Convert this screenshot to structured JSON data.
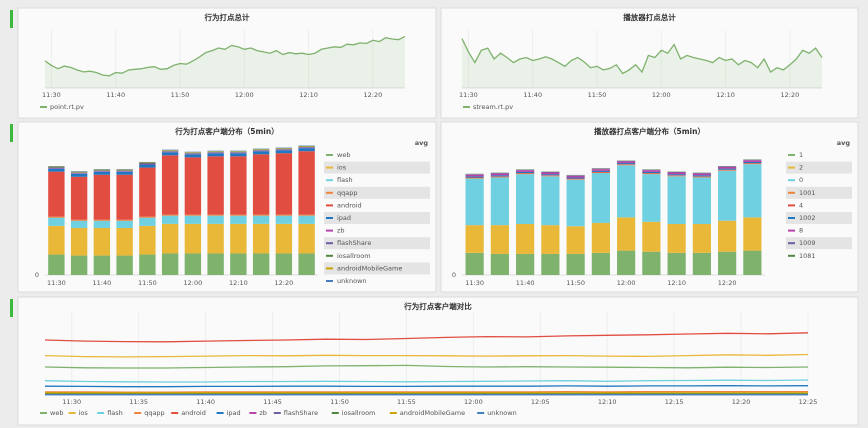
{
  "chart_data": [
    {
      "type": "line",
      "title": "行为打点总计",
      "fill": true,
      "x": [
        "11:29",
        "11:30",
        "11:31",
        "11:32",
        "11:33",
        "11:34",
        "11:35",
        "11:36",
        "11:37",
        "11:38",
        "11:39",
        "11:40",
        "11:41",
        "11:42",
        "11:43",
        "11:44",
        "11:45",
        "11:46",
        "11:47",
        "11:48",
        "11:49",
        "11:50",
        "11:51",
        "11:52",
        "11:53",
        "11:54",
        "11:55",
        "11:56",
        "11:57",
        "11:58",
        "11:59",
        "12:00",
        "12:01",
        "12:02",
        "12:03",
        "12:04",
        "12:05",
        "12:06",
        "12:07",
        "12:08",
        "12:09",
        "12:10",
        "12:11",
        "12:12",
        "12:13",
        "12:14",
        "12:15",
        "12:16",
        "12:17",
        "12:18",
        "12:19",
        "12:20",
        "12:21",
        "12:22",
        "12:23",
        "12:24",
        "12:25"
      ],
      "xlim": [
        "11:29",
        "12:25"
      ],
      "xticks": [
        "11:30",
        "11:40",
        "11:50",
        "12:00",
        "12:10",
        "12:20"
      ],
      "ylim": [
        20,
        110
      ],
      "series": [
        {
          "name": "point.rt.pv",
          "color": "#7eb26d",
          "values": [
            62,
            55,
            50,
            54,
            52,
            48,
            45,
            46,
            44,
            40,
            39,
            44,
            43,
            48,
            49,
            50,
            52,
            53,
            49,
            50,
            55,
            58,
            57,
            62,
            68,
            75,
            78,
            82,
            80,
            86,
            84,
            80,
            82,
            78,
            76,
            74,
            78,
            72,
            75,
            73,
            74,
            72,
            74,
            80,
            82,
            84,
            83,
            88,
            87,
            90,
            89,
            94,
            92,
            98,
            96,
            95,
            100
          ]
        }
      ]
    },
    {
      "type": "line",
      "title": "播放器打点总计",
      "fill": true,
      "x": [
        "11:29",
        "11:30",
        "11:31",
        "11:32",
        "11:33",
        "11:34",
        "11:35",
        "11:36",
        "11:37",
        "11:38",
        "11:39",
        "11:40",
        "11:41",
        "11:42",
        "11:43",
        "11:44",
        "11:45",
        "11:46",
        "11:47",
        "11:48",
        "11:49",
        "11:50",
        "11:51",
        "11:52",
        "11:53",
        "11:54",
        "11:55",
        "11:56",
        "11:57",
        "11:58",
        "11:59",
        "12:00",
        "12:01",
        "12:02",
        "12:03",
        "12:04",
        "12:05",
        "12:06",
        "12:07",
        "12:08",
        "12:09",
        "12:10",
        "12:11",
        "12:12",
        "12:13",
        "12:14",
        "12:15",
        "12:16",
        "12:17",
        "12:18",
        "12:19",
        "12:20",
        "12:21",
        "12:22",
        "12:23",
        "12:24",
        "12:25"
      ],
      "xlim": [
        "11:29",
        "12:25"
      ],
      "xticks": [
        "11:30",
        "11:40",
        "11:50",
        "12:00",
        "12:10",
        "12:20"
      ],
      "ylim": [
        20,
        100
      ],
      "series": [
        {
          "name": "stream.rt.pv",
          "color": "#7eb26d",
          "values": [
            88,
            70,
            55,
            72,
            75,
            60,
            68,
            62,
            55,
            60,
            62,
            58,
            60,
            63,
            60,
            55,
            50,
            58,
            62,
            56,
            48,
            50,
            45,
            47,
            52,
            40,
            45,
            52,
            42,
            65,
            62,
            72,
            68,
            80,
            60,
            65,
            62,
            60,
            58,
            55,
            62,
            58,
            60,
            52,
            58,
            55,
            48,
            60,
            42,
            48,
            45,
            52,
            60,
            72,
            68,
            75,
            62
          ]
        }
      ]
    },
    {
      "type": "bar",
      "title": "行为打点客户端分布（5min）",
      "legend_header": "avg",
      "categories": [
        "11:30",
        null,
        "11:40",
        null,
        "11:50",
        null,
        "12:00",
        null,
        "12:10",
        null,
        "12:20",
        null
      ],
      "ylim": [
        0,
        130
      ],
      "yticks": [
        0
      ],
      "series": [
        {
          "name": "web",
          "color": "#7eb26d",
          "values": [
            20,
            19,
            19,
            19,
            20,
            21,
            21,
            21,
            21,
            21,
            21,
            21
          ]
        },
        {
          "name": "ios",
          "color": "#eab839",
          "values": [
            28,
            27,
            27,
            27,
            28,
            29,
            29,
            29,
            29,
            29,
            29,
            29
          ]
        },
        {
          "name": "flash",
          "color": "#6ed0e0",
          "values": [
            8,
            7,
            7,
            7,
            8,
            8,
            8,
            8,
            8,
            8,
            8,
            8
          ]
        },
        {
          "name": "qqapp",
          "color": "#ef843c",
          "values": [
            1,
            1,
            1,
            1,
            1,
            1,
            1,
            1,
            1,
            1,
            1,
            1
          ]
        },
        {
          "name": "android",
          "color": "#e24d42",
          "values": [
            44,
            42,
            44,
            44,
            48,
            58,
            56,
            57,
            57,
            59,
            60,
            62
          ]
        },
        {
          "name": "ipad",
          "color": "#1f78c1",
          "values": [
            3,
            3,
            3,
            3,
            3,
            3,
            3,
            3,
            3,
            3,
            3,
            3
          ]
        },
        {
          "name": "zb",
          "color": "#ba43a9",
          "values": [
            0.5,
            0.5,
            0.5,
            0.5,
            0.5,
            0.5,
            0.5,
            0.5,
            0.5,
            0.5,
            0.5,
            0.5
          ]
        },
        {
          "name": "flashShare",
          "color": "#705da0",
          "values": [
            0.5,
            0.5,
            0.5,
            0.5,
            0.5,
            0.5,
            0.5,
            0.5,
            0.5,
            0.5,
            0.5,
            0.5
          ]
        },
        {
          "name": "iosallroom",
          "color": "#508642",
          "values": [
            0.5,
            0.5,
            0.5,
            0.5,
            0.5,
            0.5,
            0.5,
            0.5,
            0.5,
            0.5,
            0.5,
            0.5
          ]
        },
        {
          "name": "androidMobileGame",
          "color": "#cca300",
          "values": [
            0.5,
            0.5,
            0.5,
            0.5,
            0.5,
            0.5,
            0.5,
            0.5,
            0.5,
            0.5,
            0.5,
            0.5
          ]
        },
        {
          "name": "unknown",
          "color": "#447ebc",
          "values": [
            0.5,
            0.5,
            0.5,
            0.5,
            0.5,
            0.5,
            0.5,
            0.5,
            0.5,
            0.5,
            0.5,
            0.5
          ]
        }
      ]
    },
    {
      "type": "bar",
      "title": "播放器打点客户端分布（5min）",
      "legend_header": "avg",
      "categories": [
        "11:30",
        null,
        "11:40",
        null,
        "11:50",
        null,
        "12:00",
        null,
        "12:10",
        null,
        "12:20",
        null
      ],
      "ylim": [
        0,
        120
      ],
      "yticks": [
        0
      ],
      "series": [
        {
          "name": "1",
          "color": "#7eb26d",
          "values": [
            20,
            19,
            19,
            19,
            19,
            20,
            22,
            21,
            20,
            20,
            21,
            22
          ]
        },
        {
          "name": "2",
          "color": "#eab839",
          "values": [
            25,
            26,
            27,
            26,
            25,
            27,
            30,
            27,
            26,
            26,
            28,
            30
          ]
        },
        {
          "name": "0",
          "color": "#6ed0e0",
          "values": [
            42,
            43,
            45,
            44,
            42,
            45,
            47,
            43,
            43,
            42,
            45,
            48
          ]
        },
        {
          "name": "1001",
          "color": "#ef843c",
          "values": [
            0.5,
            0.5,
            0.5,
            0.5,
            0.5,
            0.5,
            0.5,
            0.5,
            0.5,
            0.5,
            0.5,
            0.5
          ]
        },
        {
          "name": "4",
          "color": "#e24d42",
          "values": [
            0.5,
            0.5,
            0.5,
            0.5,
            0.5,
            0.5,
            0.5,
            0.5,
            0.5,
            0.5,
            0.5,
            0.5
          ]
        },
        {
          "name": "1002",
          "color": "#1f78c1",
          "values": [
            1,
            1,
            1,
            1,
            1,
            1,
            1,
            1,
            1,
            1,
            1,
            1
          ]
        },
        {
          "name": "8",
          "color": "#ba43a9",
          "values": [
            1.5,
            1.5,
            1.5,
            1.5,
            1.5,
            1.5,
            1.5,
            1.5,
            1.5,
            1.5,
            1.5,
            1.5
          ]
        },
        {
          "name": "1009",
          "color": "#705da0",
          "values": [
            0.5,
            0.5,
            0.5,
            0.5,
            0.5,
            0.5,
            0.5,
            0.5,
            0.5,
            0.5,
            0.5,
            0.5
          ]
        },
        {
          "name": "1081",
          "color": "#508642",
          "values": [
            0.3,
            0.3,
            0.3,
            0.3,
            0.3,
            0.3,
            0.3,
            0.3,
            0.3,
            0.3,
            0.3,
            0.3
          ]
        }
      ]
    },
    {
      "type": "line",
      "title": "行为打点客户端对比",
      "fill": false,
      "x": [
        "11:28",
        "11:31",
        "11:34",
        "11:37",
        "11:40",
        "11:43",
        "11:46",
        "11:49",
        "11:52",
        "11:55",
        "11:58",
        "12:01",
        "12:04",
        "12:07",
        "12:10",
        "12:13",
        "12:16",
        "12:19",
        "12:22",
        "12:25"
      ],
      "xlim": [
        "11:28",
        "12:25"
      ],
      "xticks": [
        "11:30",
        "11:35",
        "11:40",
        "11:45",
        "11:50",
        "11:55",
        "12:00",
        "12:05",
        "12:10",
        "12:15",
        "12:20",
        "12:25"
      ],
      "ylim": [
        0,
        320
      ],
      "series": [
        {
          "name": "web",
          "color": "#7eb26d",
          "values": [
            108,
            105,
            104,
            104,
            106,
            108,
            109,
            112,
            113,
            114,
            110,
            108,
            109,
            108,
            107,
            106,
            105,
            107,
            106,
            108
          ]
        },
        {
          "name": "ios",
          "color": "#eab839",
          "values": [
            152,
            148,
            147,
            148,
            150,
            152,
            151,
            153,
            152,
            152,
            151,
            150,
            151,
            152,
            150,
            149,
            152,
            155,
            153,
            156
          ]
        },
        {
          "name": "flash",
          "color": "#6ed0e0",
          "values": [
            55,
            52,
            51,
            50,
            50,
            52,
            52,
            53,
            52,
            51,
            52,
            53,
            54,
            55,
            53,
            55,
            56,
            57,
            56,
            58
          ]
        },
        {
          "name": "qqapp",
          "color": "#ef843c",
          "values": [
            12,
            12,
            11,
            11,
            12,
            12,
            12,
            12,
            12,
            12,
            12,
            12,
            12,
            13,
            12,
            13,
            13,
            13,
            13,
            13
          ]
        },
        {
          "name": "android",
          "color": "#e24d42",
          "values": [
            212,
            208,
            206,
            205,
            208,
            210,
            212,
            215,
            214,
            218,
            222,
            225,
            224,
            228,
            230,
            232,
            235,
            238,
            236,
            240
          ]
        },
        {
          "name": "ipad",
          "color": "#1f78c1",
          "values": [
            34,
            33,
            32,
            32,
            33,
            33,
            34,
            34,
            33,
            33,
            34,
            34,
            34,
            35,
            34,
            35,
            35,
            36,
            35,
            36
          ]
        },
        {
          "name": "zb",
          "color": "#ba43a9",
          "values": [
            3,
            3,
            3,
            3,
            3,
            3,
            3,
            3,
            3,
            3,
            3,
            3,
            3,
            3,
            3,
            3,
            3,
            3,
            3,
            3
          ]
        },
        {
          "name": "flashShare",
          "color": "#705da0",
          "values": [
            2,
            2,
            2,
            2,
            2,
            2,
            2,
            2,
            2,
            2,
            2,
            2,
            2,
            2,
            2,
            2,
            2,
            2,
            2,
            2
          ]
        },
        {
          "name": "iosallroom",
          "color": "#508642",
          "values": [
            5,
            5,
            5,
            5,
            5,
            5,
            5,
            5,
            5,
            5,
            5,
            5,
            5,
            5,
            5,
            5,
            5,
            5,
            5,
            5
          ]
        },
        {
          "name": "androidMobileGame",
          "color": "#cca300",
          "values": [
            8,
            8,
            8,
            8,
            8,
            8,
            8,
            8,
            8,
            8,
            8,
            8,
            8,
            8,
            8,
            8,
            8,
            8,
            8,
            8
          ]
        },
        {
          "name": "unknown",
          "color": "#447ebc",
          "values": [
            1,
            1,
            1,
            1,
            1,
            1,
            1,
            1,
            1,
            1,
            1,
            1,
            1,
            1,
            1,
            1,
            1,
            1,
            1,
            1
          ]
        }
      ]
    }
  ]
}
